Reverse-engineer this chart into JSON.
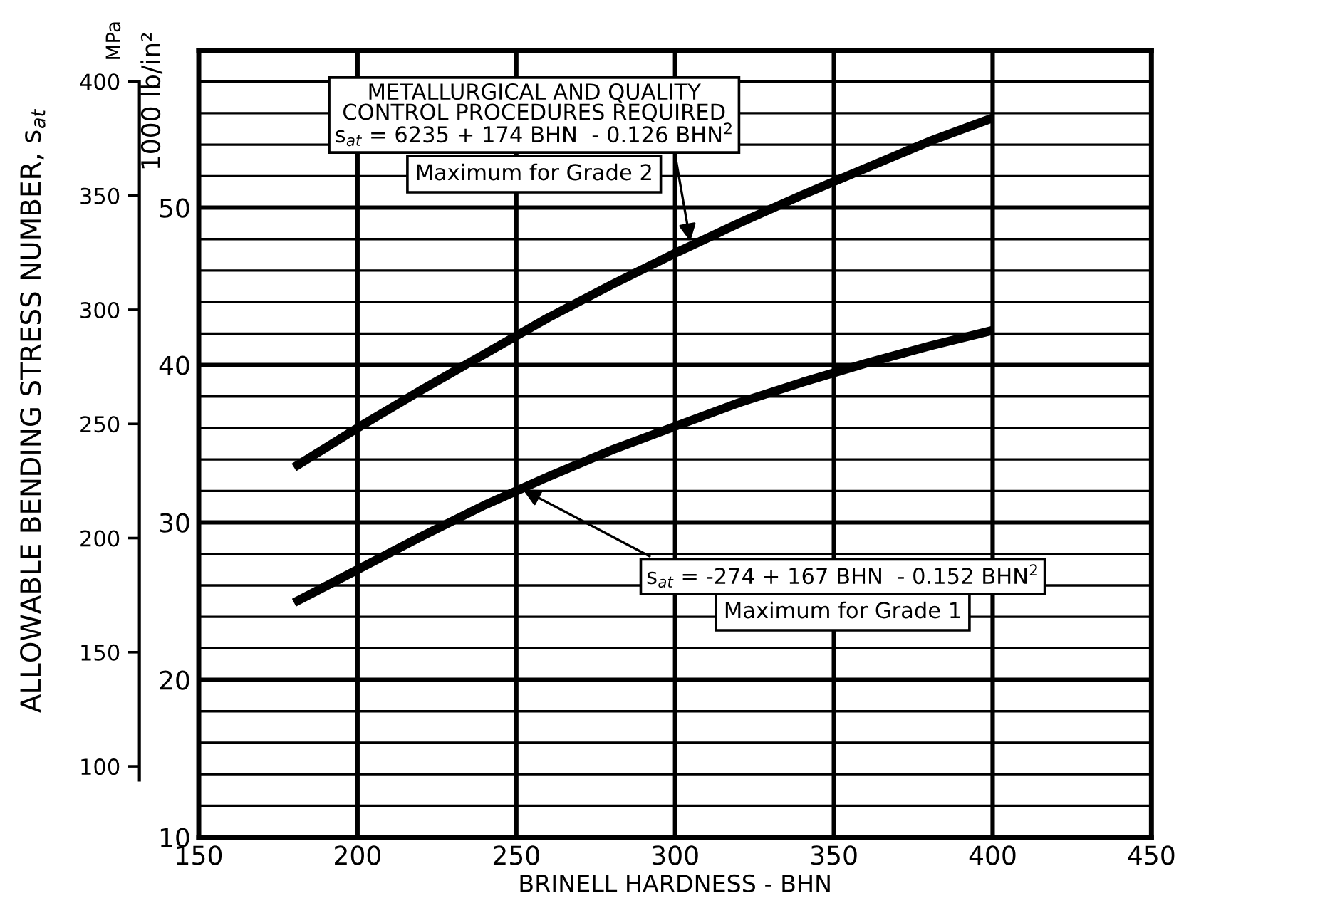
{
  "chart_data": {
    "type": "line",
    "xlabel": "BRINELL HARDNESS - BHN",
    "ylabel": "1000 lb/in²",
    "y2label": "MPa",
    "x": [
      180,
      200,
      220,
      240,
      260,
      280,
      300,
      320,
      340,
      360,
      380,
      400
    ],
    "series": [
      {
        "name": "Maximum for Grade 2",
        "color": "#000000",
        "values": [
          33.5,
          36.0,
          38.4,
          40.7,
          43.0,
          45.1,
          47.1,
          49.0,
          50.8,
          52.5,
          54.2,
          55.7
        ]
      },
      {
        "name": "Maximum for Grade 1",
        "color": "#000000",
        "values": [
          24.9,
          27.0,
          29.1,
          31.1,
          32.9,
          34.6,
          36.1,
          37.6,
          38.9,
          40.1,
          41.2,
          42.2
        ]
      }
    ],
    "xlim": [
      150,
      450
    ],
    "xticks": [
      150,
      200,
      250,
      300,
      350,
      400,
      450
    ],
    "ylim": [
      10,
      60
    ],
    "yticks": [
      10,
      20,
      30,
      40,
      50
    ],
    "y2lim": [
      68.95,
      413.7
    ],
    "y2ticks": [
      100,
      150,
      200,
      250,
      300,
      350,
      400
    ],
    "grid": true,
    "marker": "none",
    "line_style": "solid",
    "annotations": [
      {
        "text": "METALLURGICAL AND QUALITY\nCONTROL PROCEDURES REQUIRED\ns$_{at}$ = 6235 + 174 BHN  - 0.126 BHN$^{2}$",
        "x": 305,
        "y": 47.6
      },
      {
        "text": "s$_{at}$ = -274 + 167 BHN  - 0.152 BHN$^{2}$",
        "x": 251,
        "y": 32.2
      },
      "ALLOWABLE BENDING STRESS NUMBER, s$_{at}$"
    ]
  }
}
